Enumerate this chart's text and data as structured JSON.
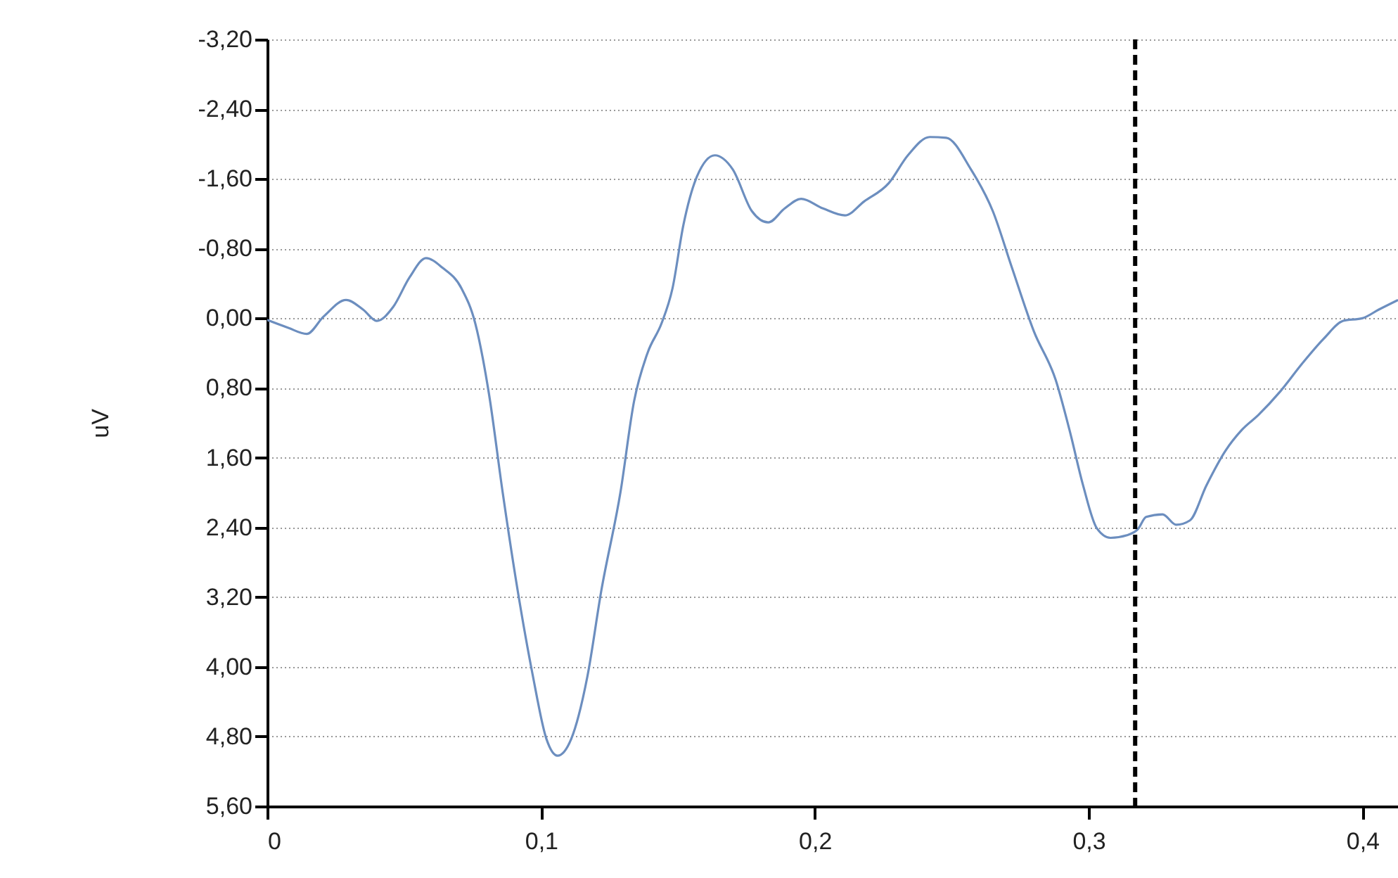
{
  "chart_data": {
    "type": "line",
    "ylabel": "uV",
    "x": [
      0,
      0.0077,
      0.0144,
      0.0206,
      0.0288,
      0.035,
      0.04,
      0.046,
      0.052,
      0.058,
      0.064,
      0.071,
      0.076,
      0.081,
      0.086,
      0.0915,
      0.097,
      0.102,
      0.106,
      0.111,
      0.117,
      0.122,
      0.129,
      0.134,
      0.139,
      0.144,
      0.148,
      0.152,
      0.157,
      0.1635,
      0.17,
      0.177,
      0.183,
      0.189,
      0.195,
      0.203,
      0.211,
      0.218,
      0.227,
      0.234,
      0.242,
      0.248,
      0.257,
      0.265,
      0.272,
      0.28,
      0.288,
      0.293,
      0.298,
      0.303,
      0.308,
      0.314,
      0.318,
      0.321,
      0.327,
      0.332,
      0.337,
      0.343,
      0.35,
      0.356,
      0.362,
      0.37,
      0.378,
      0.386,
      0.393,
      0.4,
      0.406,
      0.413
    ],
    "series": [
      {
        "color": "#6c8ebf",
        "values": [
          0.02,
          0.11,
          0.18,
          -0.02,
          -0.21,
          -0.1,
          0.03,
          -0.13,
          -0.47,
          -0.69,
          -0.58,
          -0.34,
          0.06,
          0.87,
          2.0,
          3.13,
          4.1,
          4.83,
          5.02,
          4.83,
          4.1,
          3.13,
          2.0,
          0.95,
          0.39,
          0.06,
          -0.34,
          -1.07,
          -1.63,
          -1.87,
          -1.71,
          -1.23,
          -1.1,
          -1.26,
          -1.37,
          -1.26,
          -1.18,
          -1.34,
          -1.55,
          -1.87,
          -2.08,
          -2.07,
          -1.71,
          -1.23,
          -0.58,
          0.15,
          0.71,
          1.28,
          1.92,
          2.41,
          2.52,
          2.49,
          2.42,
          2.28,
          2.25,
          2.37,
          2.32,
          1.92,
          1.52,
          1.28,
          1.11,
          0.84,
          0.52,
          0.23,
          0.03,
          0.0,
          -0.1,
          -0.21
        ]
      }
    ],
    "xlim": [
      0,
      0.413
    ],
    "xticks": [
      0,
      {
        "value": 0.1,
        "label": "0,1"
      },
      {
        "value": 0.2,
        "label": "0,2"
      },
      {
        "value": 0.3,
        "label": "0,3"
      },
      {
        "value": 0.4,
        "label": "0,4"
      }
    ],
    "ylim": [
      5.6,
      -3.2
    ],
    "yticks": [
      {
        "value": -3.2,
        "label": "-3,20"
      },
      {
        "value": -2.4,
        "label": "-2,40"
      },
      {
        "value": -1.6,
        "label": "-1,60"
      },
      {
        "value": -0.8,
        "label": "-0,80"
      },
      {
        "value": 0,
        "label": "0,00"
      },
      {
        "value": 0.8,
        "label": "0,80"
      },
      {
        "value": 1.6,
        "label": "1,60"
      },
      {
        "value": 2.4,
        "label": "2,40"
      },
      {
        "value": 3.2,
        "label": "3,20"
      },
      {
        "value": 4,
        "label": "4,00"
      },
      {
        "value": 4.8,
        "label": "4,80"
      },
      {
        "value": 5.6,
        "label": "5,60"
      }
    ],
    "grid": "y",
    "line_style": "solid",
    "ref_lines": [
      {
        "axis": "x",
        "value": 0.317,
        "color": "#000000",
        "line_style": "dashed"
      }
    ]
  }
}
